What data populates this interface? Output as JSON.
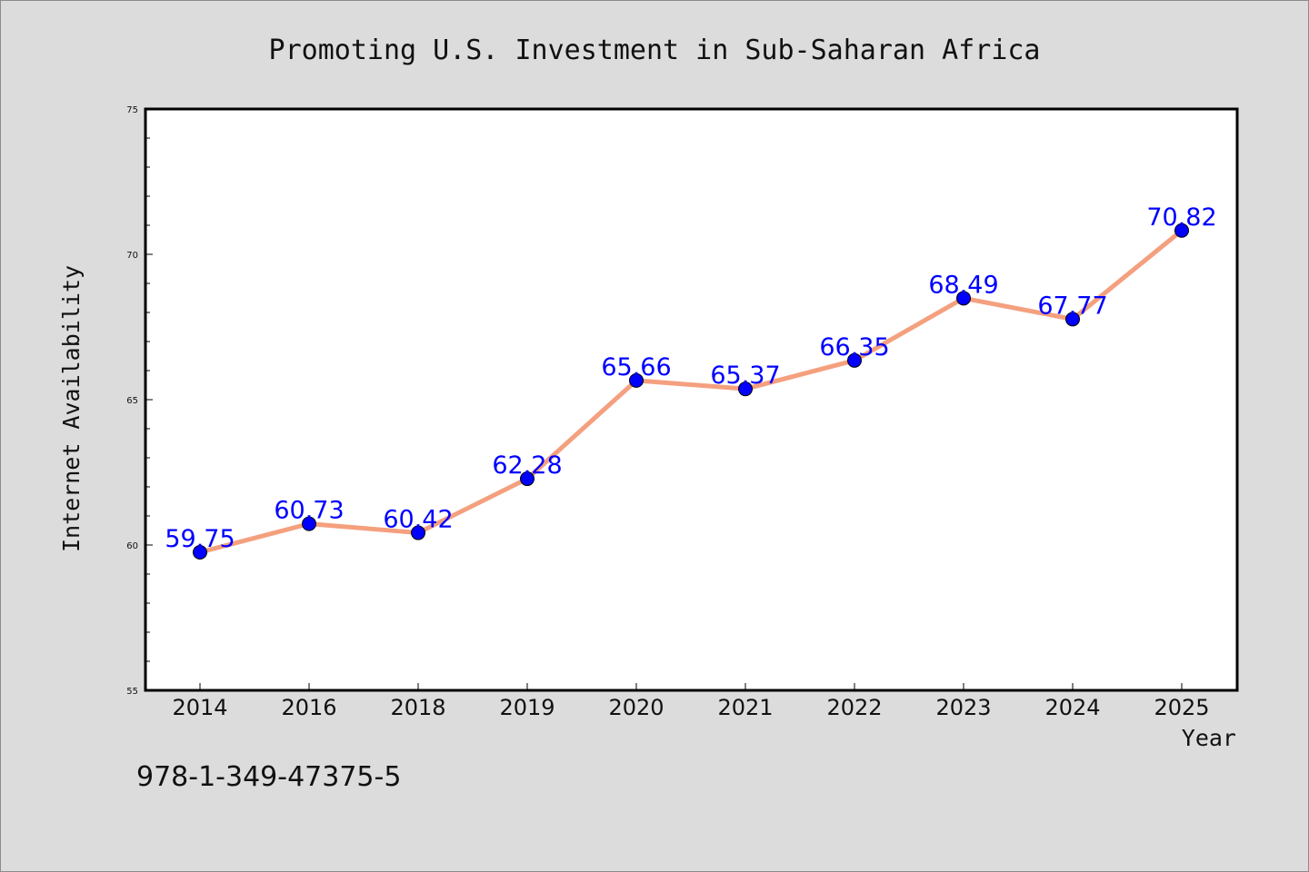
{
  "chart_data": {
    "type": "line",
    "title": "Promoting U.S. Investment in Sub-Saharan Africa",
    "xlabel": "Year",
    "ylabel": "Internet Availability",
    "categories": [
      "2014",
      "2016",
      "2018",
      "2019",
      "2020",
      "2021",
      "2022",
      "2023",
      "2024",
      "2025"
    ],
    "values": [
      59.75,
      60.73,
      60.42,
      62.28,
      65.66,
      65.37,
      66.35,
      68.49,
      67.77,
      70.82
    ],
    "value_labels": [
      "59.75",
      "60.73",
      "60.42",
      "62.28",
      "65.66",
      "65.37",
      "66.35",
      "68.49",
      "67.77",
      "70.82"
    ],
    "ylim": [
      55,
      75
    ],
    "yticks": [
      "55",
      "60",
      "65",
      "70",
      "75"
    ],
    "grid": false,
    "legend": "none",
    "colors": {
      "line": "#f4a07f",
      "marker": "#0000ff",
      "data_label": "#0000ff",
      "background": "#dcdcdc",
      "plot_area": "#ffffff"
    }
  },
  "footnote": "978-1-349-47375-5"
}
